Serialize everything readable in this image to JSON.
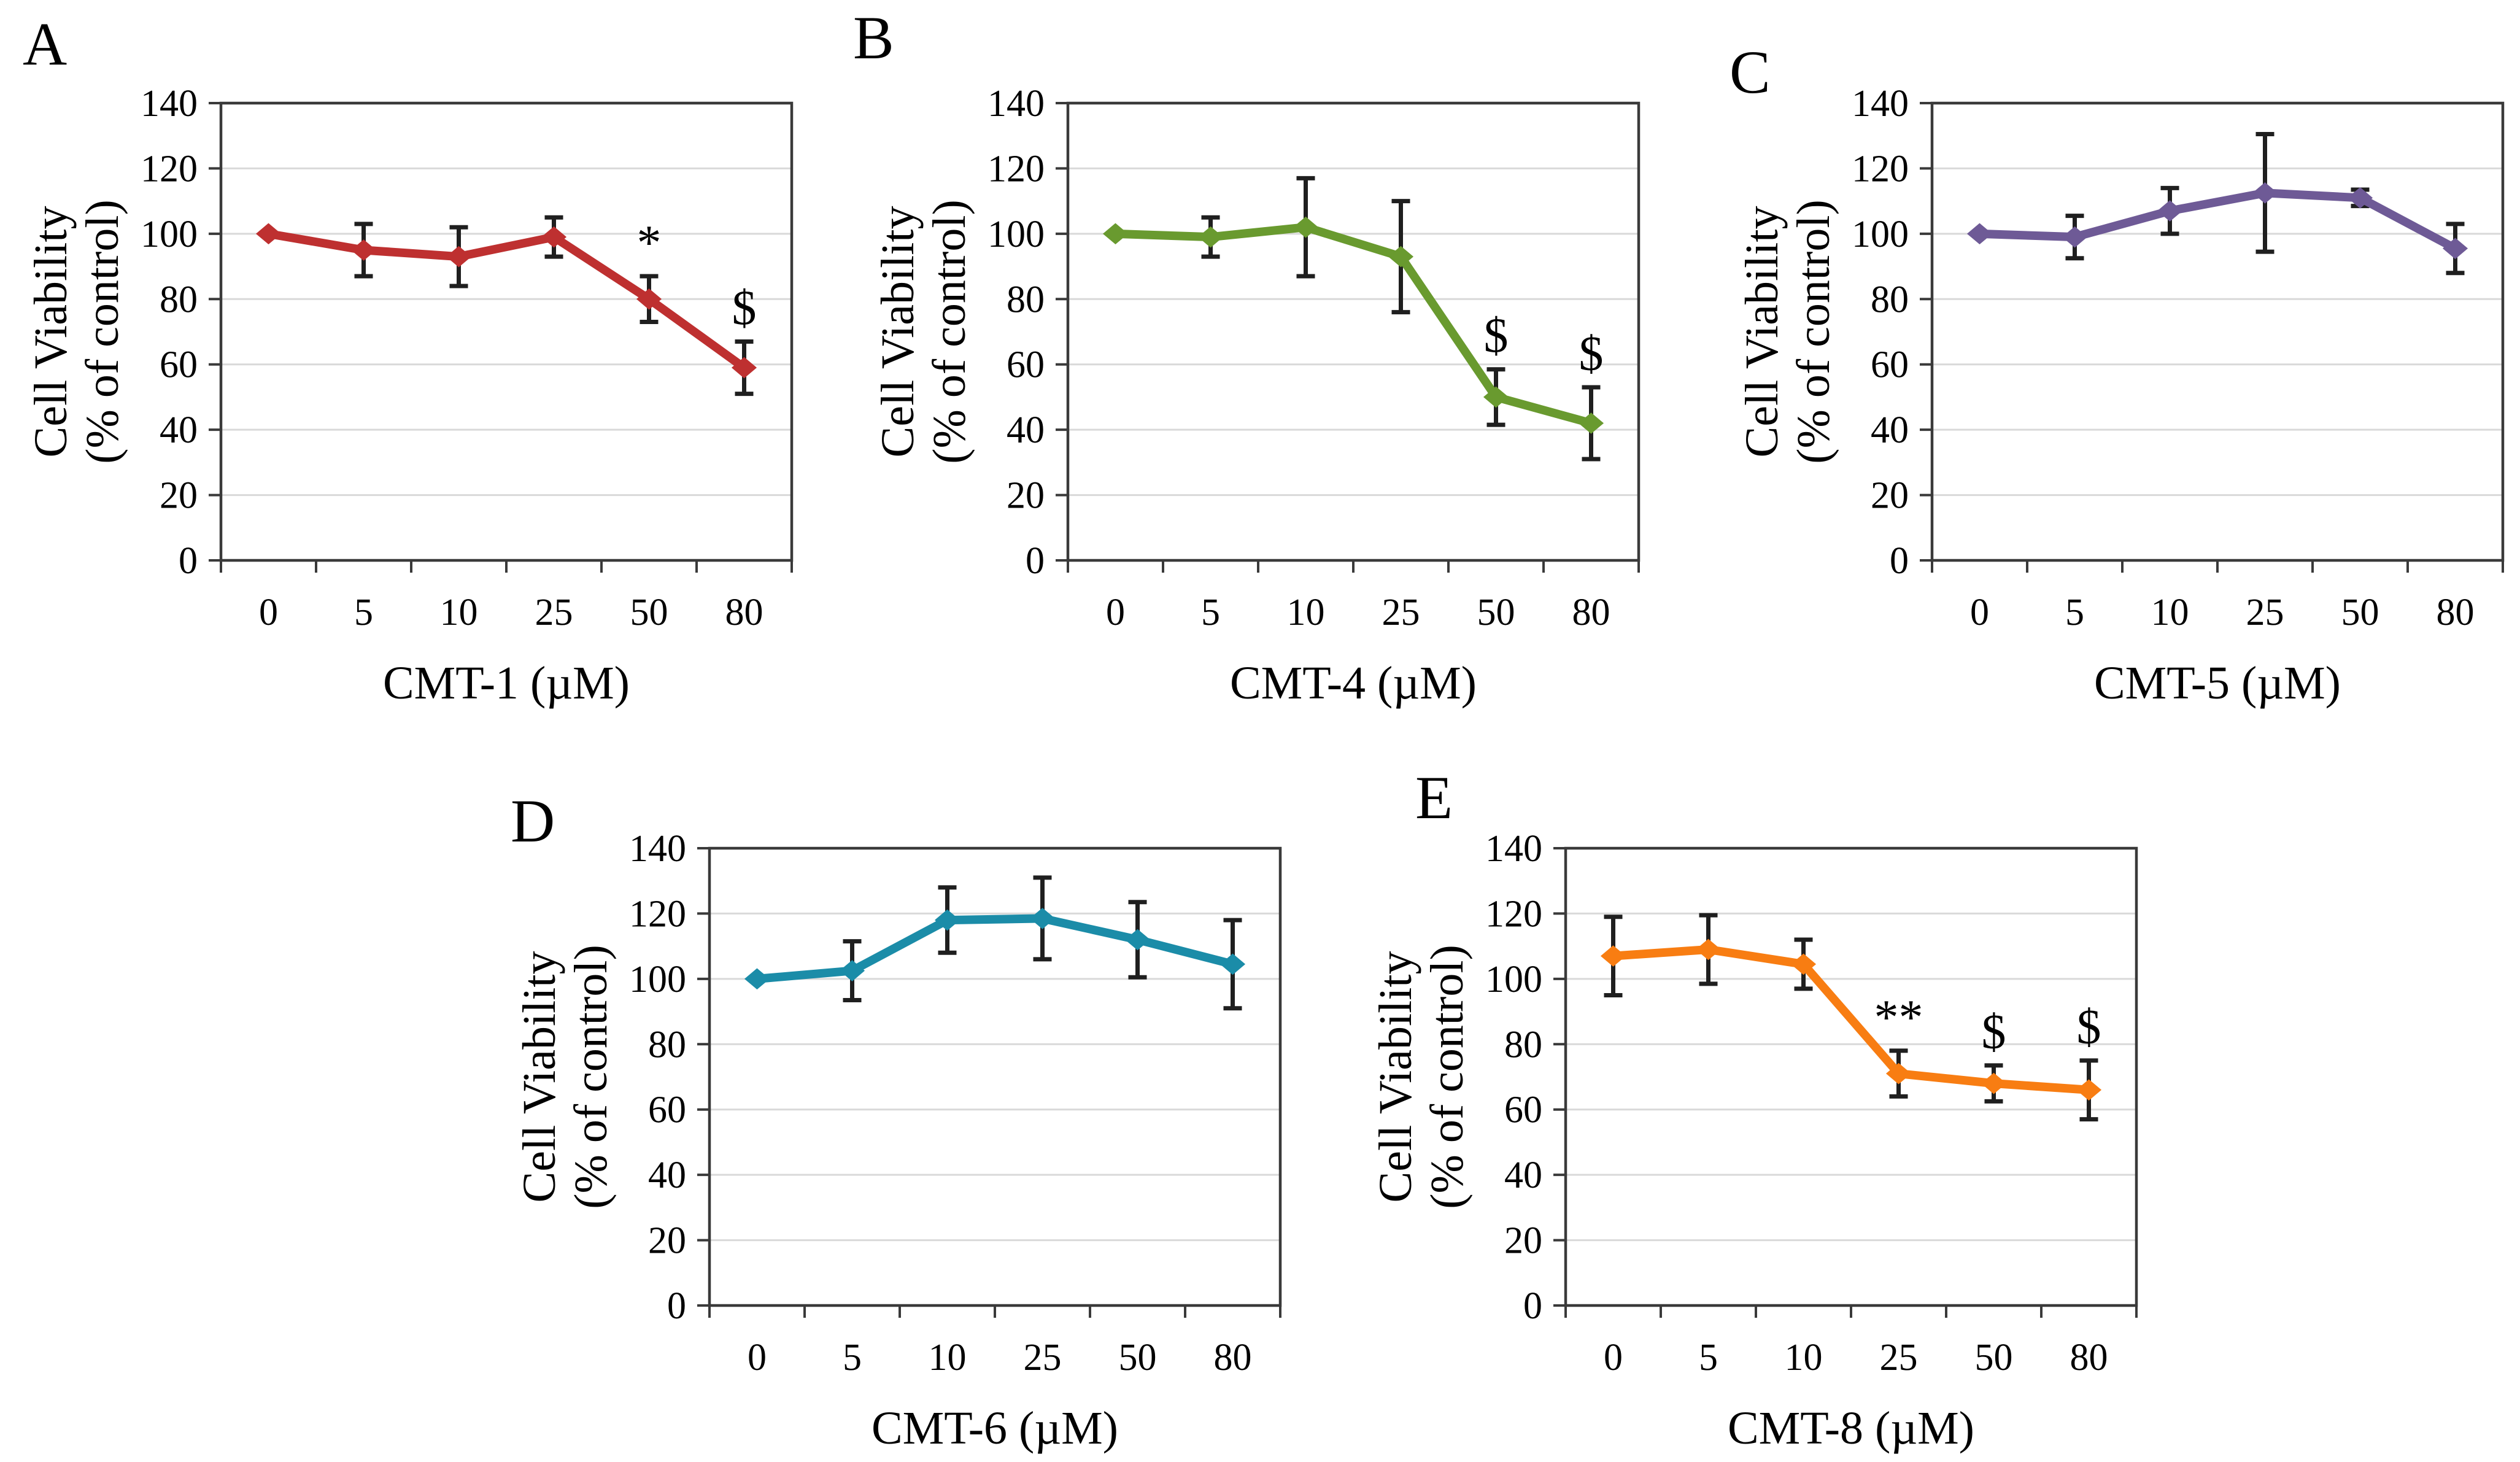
{
  "styles": {
    "axis_color": "#3A3A3A",
    "grid_color": "#D9D9D9",
    "error_bar_color": "#1F1F1F",
    "text_color": "#000000",
    "background": "#FFFFFF"
  },
  "chart_data": [
    {
      "type": "line",
      "panel_label": "A",
      "xlabel": "CMT-1 (µM)",
      "ylabel_lines": [
        "Cell Viability",
        "(% of control)"
      ],
      "x_tick_labels": [
        "0",
        "5",
        "10",
        "25",
        "50",
        "80"
      ],
      "ylim": [
        0,
        140
      ],
      "ytick_step": 20,
      "grid": true,
      "legend_position": "none",
      "marker": "diamond",
      "series": [
        {
          "name": "CMT-1",
          "color": "#BE3030",
          "values": [
            100,
            95,
            93,
            99,
            80,
            59
          ],
          "errors": [
            0,
            8,
            9,
            6,
            7,
            8
          ]
        }
      ],
      "annotations": [
        {
          "x_index": 4,
          "text": "*"
        },
        {
          "x_index": 5,
          "text": "$"
        }
      ]
    },
    {
      "type": "line",
      "panel_label": "B",
      "xlabel": "CMT-4 (µM)",
      "ylabel_lines": [
        "Cell Viability",
        "(% of control)"
      ],
      "x_tick_labels": [
        "0",
        "5",
        "10",
        "25",
        "50",
        "80"
      ],
      "ylim": [
        0,
        140
      ],
      "ytick_step": 20,
      "grid": true,
      "legend_position": "none",
      "marker": "diamond",
      "series": [
        {
          "name": "CMT-4",
          "color": "#699A2F",
          "values": [
            100,
            99,
            102,
            93,
            50,
            42
          ],
          "errors": [
            0,
            6,
            15,
            17,
            8.5,
            11
          ]
        }
      ],
      "annotations": [
        {
          "x_index": 4,
          "text": "$"
        },
        {
          "x_index": 5,
          "text": "$"
        }
      ]
    },
    {
      "type": "line",
      "panel_label": "C",
      "xlabel": "CMT-5 (µM)",
      "ylabel_lines": [
        "Cell Viability",
        "(% of control)"
      ],
      "x_tick_labels": [
        "0",
        "5",
        "10",
        "25",
        "50",
        "80"
      ],
      "ylim": [
        0,
        140
      ],
      "ytick_step": 20,
      "grid": true,
      "legend_position": "none",
      "marker": "diamond",
      "series": [
        {
          "name": "CMT-5",
          "color": "#6E5A96",
          "values": [
            100,
            99,
            107,
            112.5,
            111,
            95.5
          ],
          "errors": [
            0,
            6.5,
            7,
            18,
            2.5,
            7.5
          ]
        }
      ],
      "annotations": []
    },
    {
      "type": "line",
      "panel_label": "D",
      "xlabel": "CMT-6 (µM)",
      "ylabel_lines": [
        "Cell Viability",
        "(% of control)"
      ],
      "x_tick_labels": [
        "0",
        "5",
        "10",
        "25",
        "50",
        "80"
      ],
      "ylim": [
        0,
        140
      ],
      "ytick_step": 20,
      "grid": true,
      "legend_position": "none",
      "marker": "diamond",
      "series": [
        {
          "name": "CMT-6",
          "color": "#1B8CA8",
          "values": [
            100,
            102.5,
            118,
            118.5,
            112,
            104.5
          ],
          "errors": [
            0,
            9,
            10,
            12.5,
            11.5,
            13.5
          ]
        }
      ],
      "annotations": []
    },
    {
      "type": "line",
      "panel_label": "E",
      "xlabel": "CMT-8 (µM)",
      "ylabel_lines": [
        "Cell Viability",
        "(% of control)"
      ],
      "x_tick_labels": [
        "0",
        "5",
        "10",
        "25",
        "50",
        "80"
      ],
      "ylim": [
        0,
        140
      ],
      "ytick_step": 20,
      "grid": true,
      "legend_position": "none",
      "marker": "diamond",
      "series": [
        {
          "name": "CMT-8",
          "color": "#F87D12",
          "values": [
            107,
            109,
            104.5,
            71,
            68,
            66
          ],
          "errors": [
            12,
            10.5,
            7.5,
            7,
            5.5,
            9
          ]
        }
      ],
      "annotations": [
        {
          "x_index": 3,
          "text": "**"
        },
        {
          "x_index": 4,
          "text": "$"
        },
        {
          "x_index": 5,
          "text": "$"
        }
      ]
    }
  ]
}
